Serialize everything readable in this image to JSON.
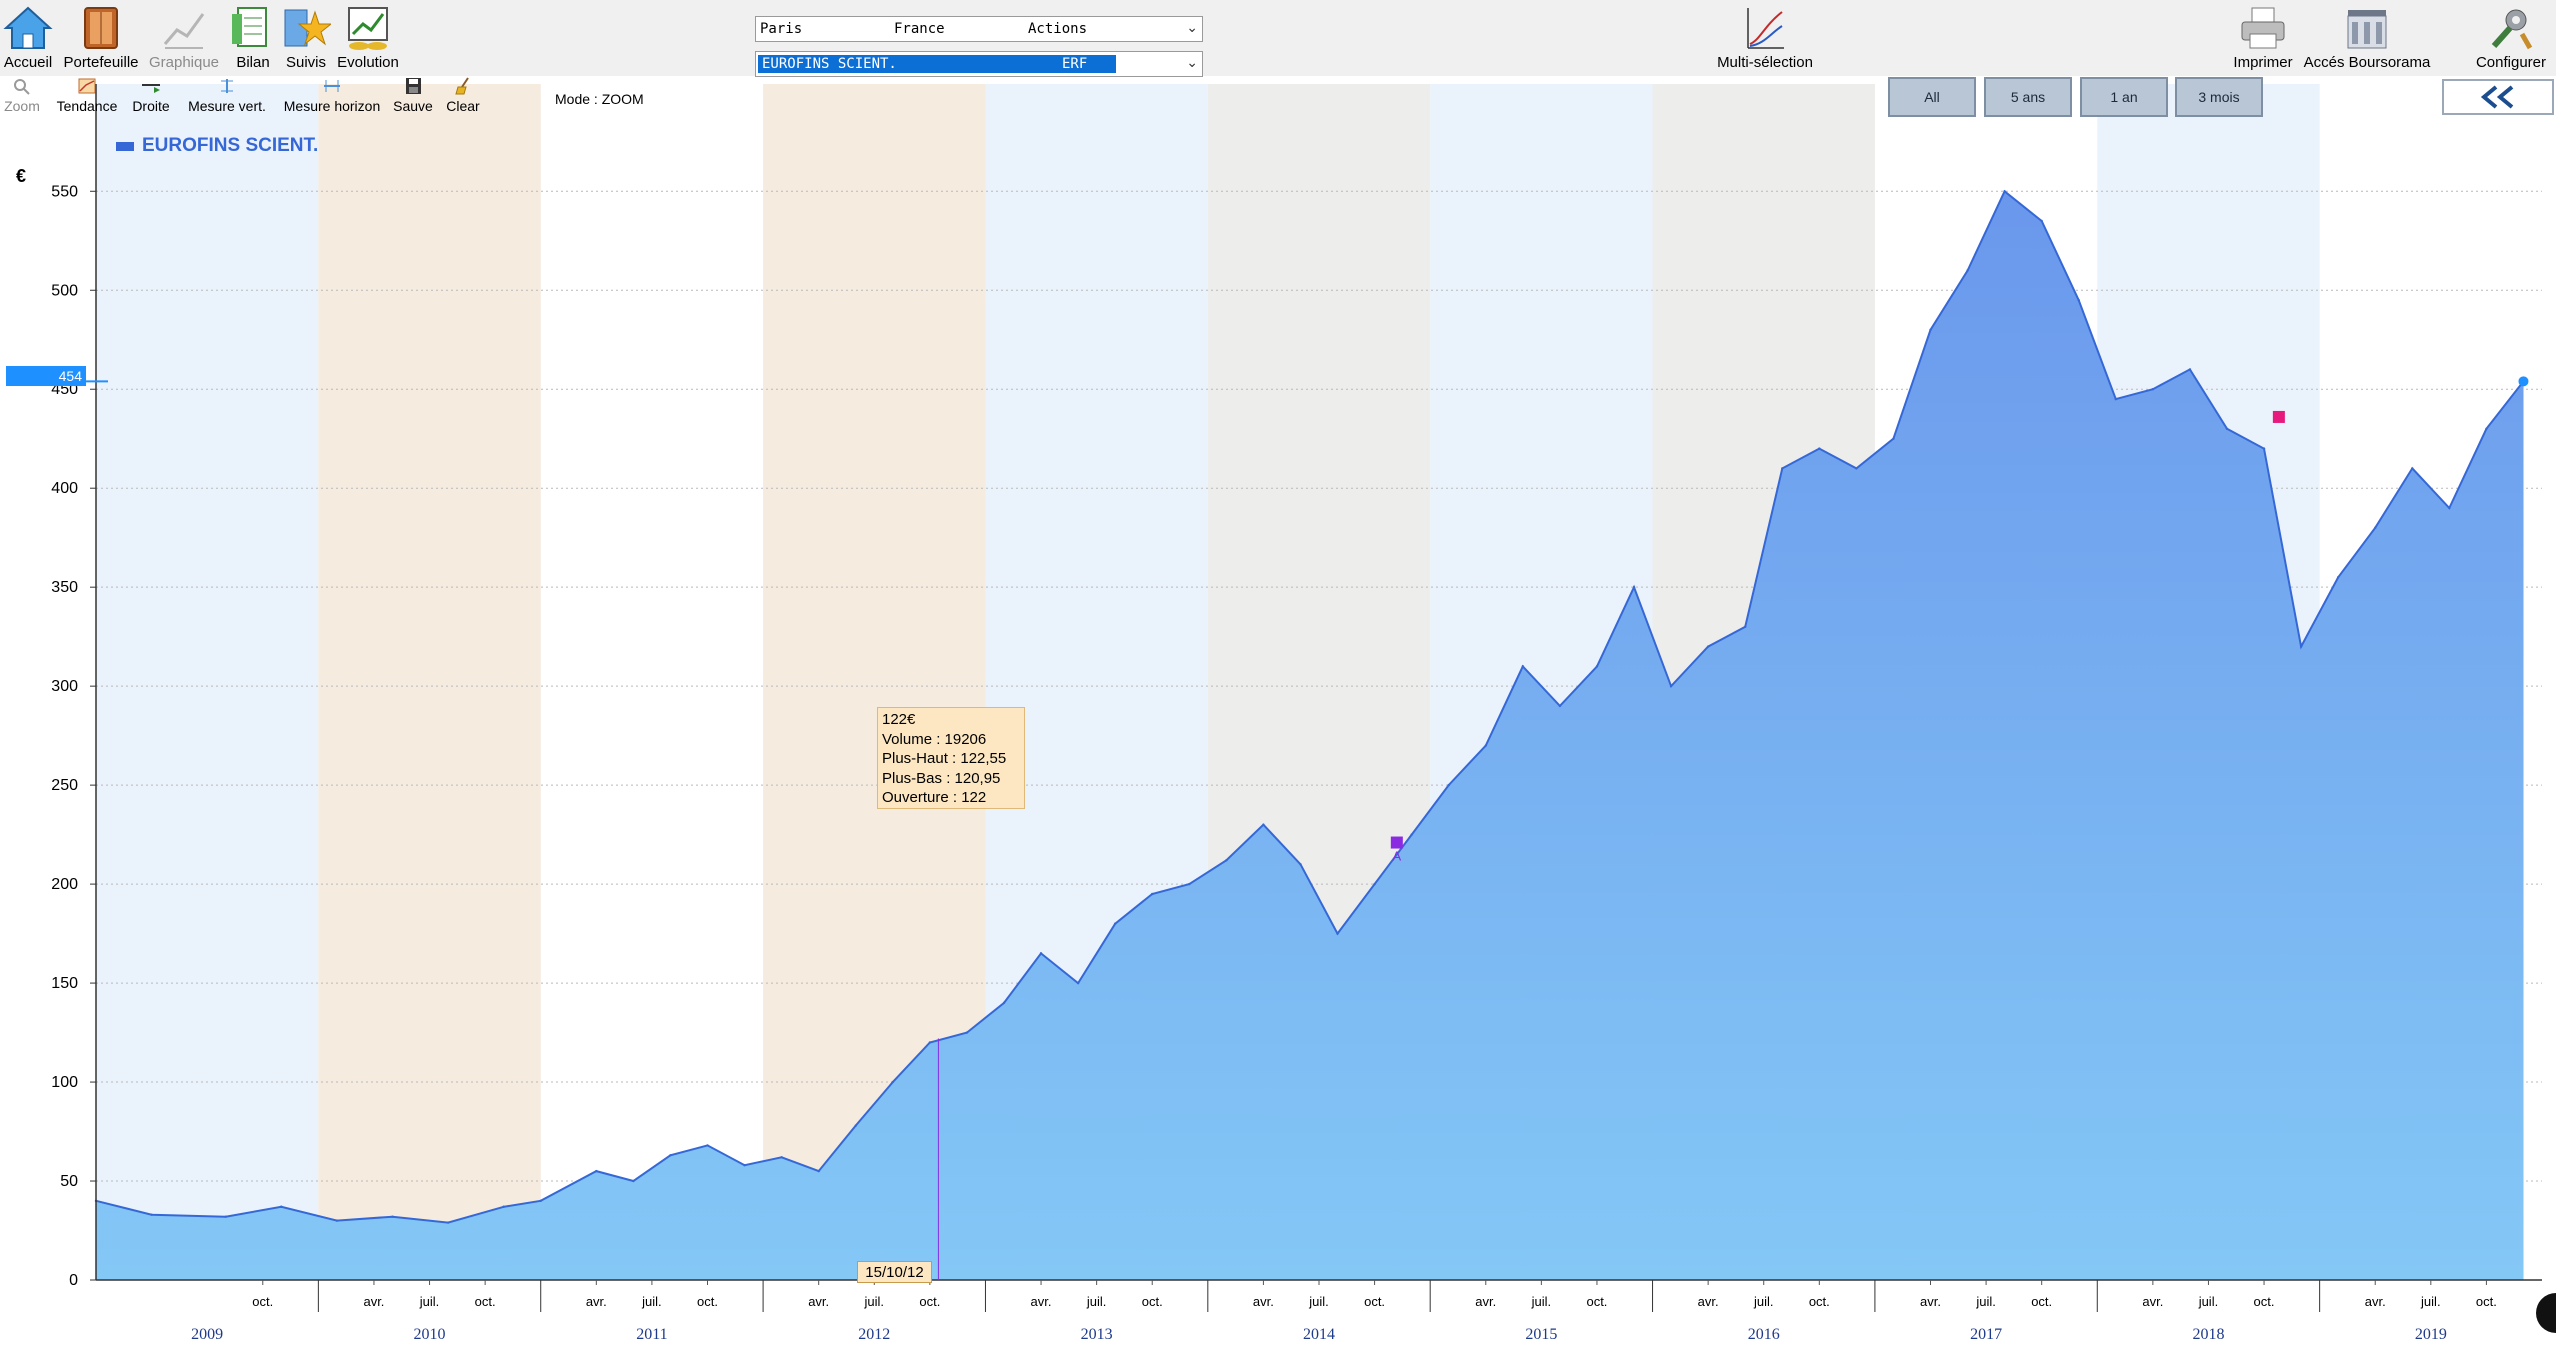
{
  "toolbar": {
    "home_label": "Accueil",
    "portfolio_label": "Portefeuille",
    "chart_label": "Graphique",
    "balance_label": "Bilan",
    "tracking_label": "Suivis",
    "evolution_label": "Evolution",
    "multiselect_label": "Multi-sélection",
    "print_label": "Imprimer",
    "boursorama_label": "Accés Boursorama",
    "configure_label": "Configurer"
  },
  "market_select": {
    "place": "Paris",
    "country": "France",
    "type": "Actions"
  },
  "stock_select": {
    "name": "EUROFINS SCIENT.",
    "ticker": "ERF"
  },
  "tools": {
    "zoom": "Zoom",
    "trend": "Tendance",
    "line": "Droite",
    "vmeasure": "Mesure vert.",
    "hmeasure": "Mesure horizon",
    "save": "Sauve",
    "clear": "Clear"
  },
  "mode_text": "Mode : ZOOM",
  "ranges": [
    "All",
    "5 ans",
    "1 an",
    "3 mois"
  ],
  "legend": {
    "name": "EUROFINS SCIENT."
  },
  "unit": "€",
  "current_price": "454",
  "tooltip": {
    "price": "122€",
    "volume": "Volume : 19206",
    "high": "Plus-Haut : 122,55",
    "low": "Plus-Bas : 120,95",
    "open": "Ouverture : 122"
  },
  "cursor_date": "15/10/12",
  "colors": {
    "series_line": "#3568d6",
    "fill_top": "#6a97ec",
    "fill_bottom": "#84c8f6",
    "band_warm": "#f6ebdf",
    "band_cool": "#eaf2fb",
    "band_gray": "#ededeb",
    "marker_purple": "#8a2be2",
    "marker_pink": "#e8197c"
  },
  "chart_data": {
    "type": "area",
    "series": [
      {
        "name": "EUROFINS SCIENT.",
        "x": [
          "2009-01",
          "2009-04",
          "2009-08",
          "2009-11",
          "2010-02",
          "2010-05",
          "2010-08",
          "2010-11",
          "2011-01",
          "2011-04",
          "2011-06",
          "2011-08",
          "2011-10",
          "2011-12",
          "2012-02",
          "2012-04",
          "2012-06",
          "2012-08",
          "2012-10",
          "2012-12",
          "2013-02",
          "2013-04",
          "2013-06",
          "2013-08",
          "2013-10",
          "2013-12",
          "2014-02",
          "2014-04",
          "2014-06",
          "2014-08",
          "2014-10",
          "2014-12",
          "2015-02",
          "2015-04",
          "2015-06",
          "2015-08",
          "2015-10",
          "2015-12",
          "2016-02",
          "2016-04",
          "2016-06",
          "2016-08",
          "2016-10",
          "2016-12",
          "2017-02",
          "2017-04",
          "2017-06",
          "2017-08",
          "2017-10",
          "2017-12",
          "2018-02",
          "2018-04",
          "2018-06",
          "2018-08",
          "2018-10",
          "2018-12",
          "2019-02",
          "2019-04",
          "2019-06",
          "2019-08",
          "2019-10",
          "2019-12"
        ],
        "values": [
          40,
          33,
          32,
          37,
          30,
          32,
          29,
          37,
          40,
          55,
          50,
          63,
          68,
          58,
          62,
          55,
          78,
          100,
          120,
          125,
          140,
          165,
          150,
          180,
          195,
          200,
          212,
          230,
          210,
          175,
          200,
          225,
          250,
          270,
          310,
          290,
          310,
          350,
          300,
          320,
          330,
          410,
          420,
          410,
          425,
          480,
          510,
          550,
          535,
          495,
          445,
          450,
          460,
          430,
          420,
          320,
          355,
          380,
          410,
          390,
          430,
          454
        ]
      }
    ],
    "x_tick_labels": [
      "oct.",
      "avr.",
      "juil.",
      "oct.",
      "avr.",
      "juil.",
      "oct.",
      "avr.",
      "juil.",
      "oct.",
      "avr.",
      "juil.",
      "oct.",
      "avr.",
      "juil.",
      "oct.",
      "avr.",
      "juil.",
      "oct.",
      "avr.",
      "juil.",
      "oct.",
      "avr.",
      "juil.",
      "oct.",
      "avr.",
      "juil.",
      "oct.",
      "avr.",
      "juil.",
      "oct."
    ],
    "year_labels": [
      "2009",
      "2010",
      "2011",
      "2012",
      "2013",
      "2014",
      "2015",
      "2016",
      "2017",
      "2018",
      "2019"
    ],
    "y_ticks": [
      0,
      50,
      100,
      150,
      200,
      250,
      300,
      350,
      400,
      450,
      500,
      550
    ],
    "ylim": [
      0,
      585
    ],
    "xlim": [
      "2009-01",
      "2019-12"
    ],
    "grid": true,
    "legend_position": "top-left",
    "current_value": 454,
    "annotation": {
      "date": "2012-10-15",
      "value": 122
    }
  }
}
